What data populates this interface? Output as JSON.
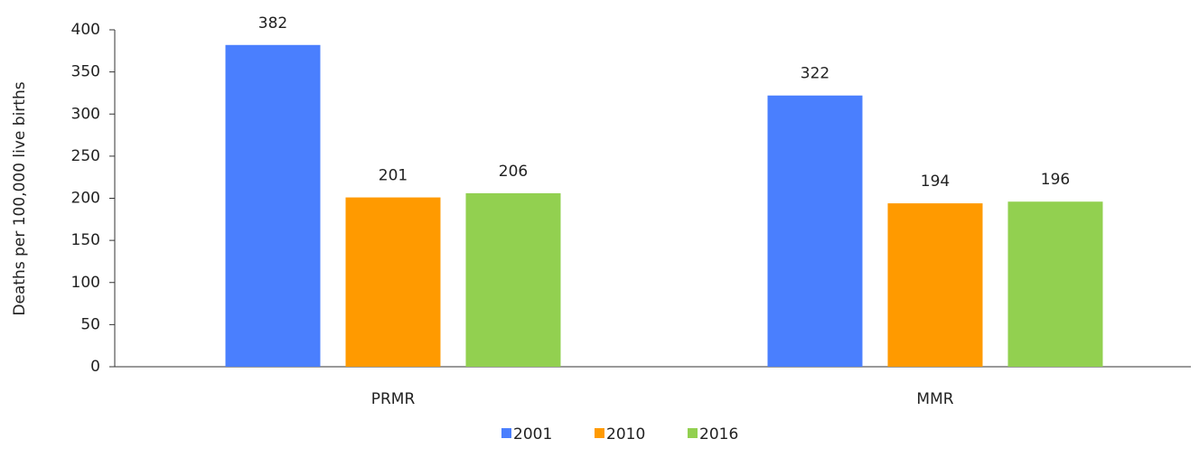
{
  "chart_data": {
    "type": "bar",
    "y_label": "Deaths per 100,000 live births",
    "categories": [
      "PRMR",
      "MMR"
    ],
    "series": [
      {
        "name": "2001",
        "color": "#4a7ffe",
        "values": [
          382,
          322
        ]
      },
      {
        "name": "2010",
        "color": "#ff9a00",
        "values": [
          201,
          194
        ]
      },
      {
        "name": "2016",
        "color": "#92d050",
        "values": [
          206,
          196
        ]
      }
    ],
    "ylim": [
      0,
      400
    ],
    "yticks": [
      0,
      50,
      100,
      150,
      200,
      250,
      300,
      350,
      400
    ],
    "grid": false,
    "legend": "bottom"
  }
}
